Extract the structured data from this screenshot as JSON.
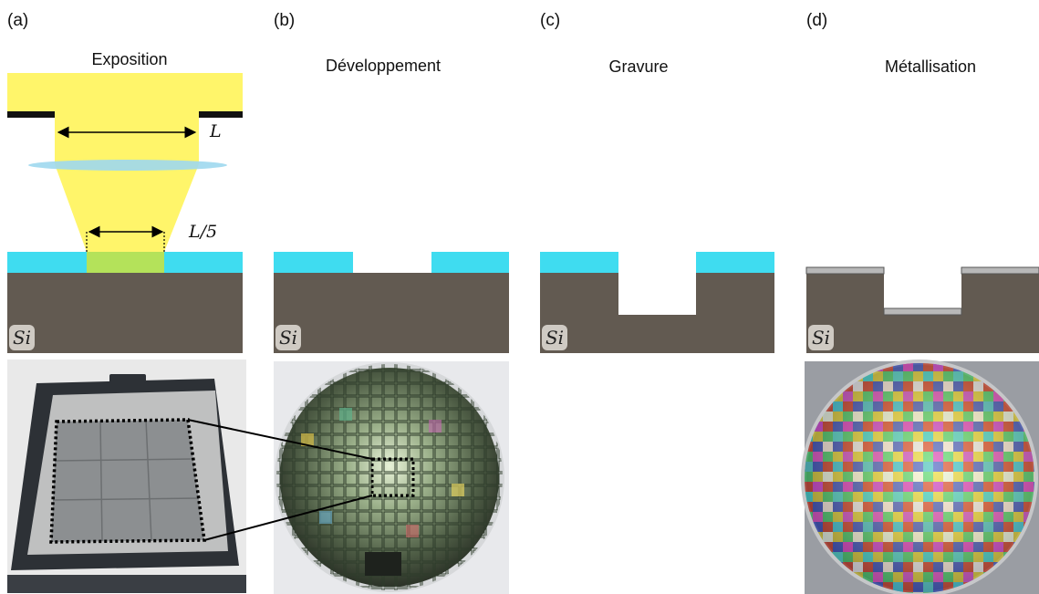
{
  "panels": [
    {
      "letter": "(a)",
      "title": "Exposition"
    },
    {
      "letter": "(b)",
      "title": "Développement"
    },
    {
      "letter": "(c)",
      "title": "Gravure"
    },
    {
      "letter": "(d)",
      "title": "Métallisation"
    }
  ],
  "labels": {
    "mask_width": "L",
    "image_width": "L/5",
    "substrate": "Si"
  },
  "colors": {
    "light": "#fff56a",
    "mask": "#111111",
    "lens": "#9fd8ee",
    "resist": "#3fdcf0",
    "exposed_resist": "#b4e25a",
    "silicon": "#625a51",
    "metal": "#b8b8b8"
  }
}
